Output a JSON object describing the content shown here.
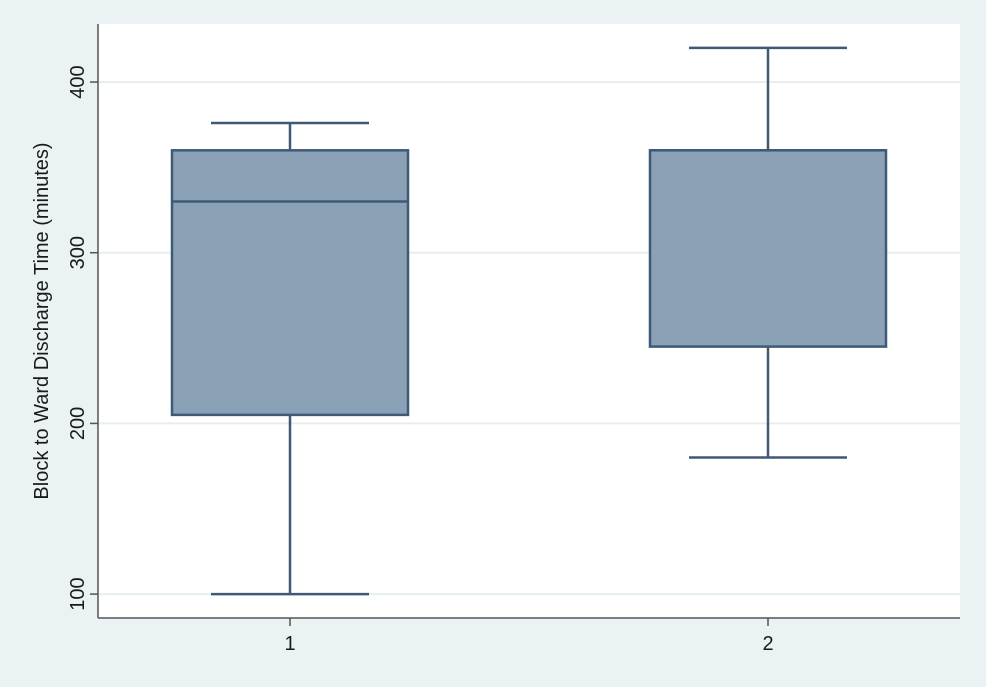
{
  "chart_data": {
    "type": "box",
    "title": "",
    "xlabel": "",
    "ylabel": "Block to Ward Discharge Time (minutes)",
    "categories": [
      "1",
      "2"
    ],
    "boxes": [
      {
        "category": "1",
        "whisker_low": 100,
        "q1": 205,
        "median": 330,
        "q3": 360,
        "whisker_high": 376
      },
      {
        "category": "2",
        "whisker_low": 180,
        "q1": 245,
        "median": 360,
        "q3": 360,
        "whisker_high": 420
      }
    ],
    "yticks": [
      100,
      200,
      300,
      400
    ],
    "ylim": [
      86,
      434
    ],
    "grid": true,
    "legend": "none",
    "colors": {
      "box_fill": "#8aa1b6",
      "box_stroke": "#3e5a76",
      "grid": "#e6eef0",
      "plot_bg": "#ffffff",
      "page_bg": "#eaf2f3",
      "axis": "#555555"
    }
  }
}
